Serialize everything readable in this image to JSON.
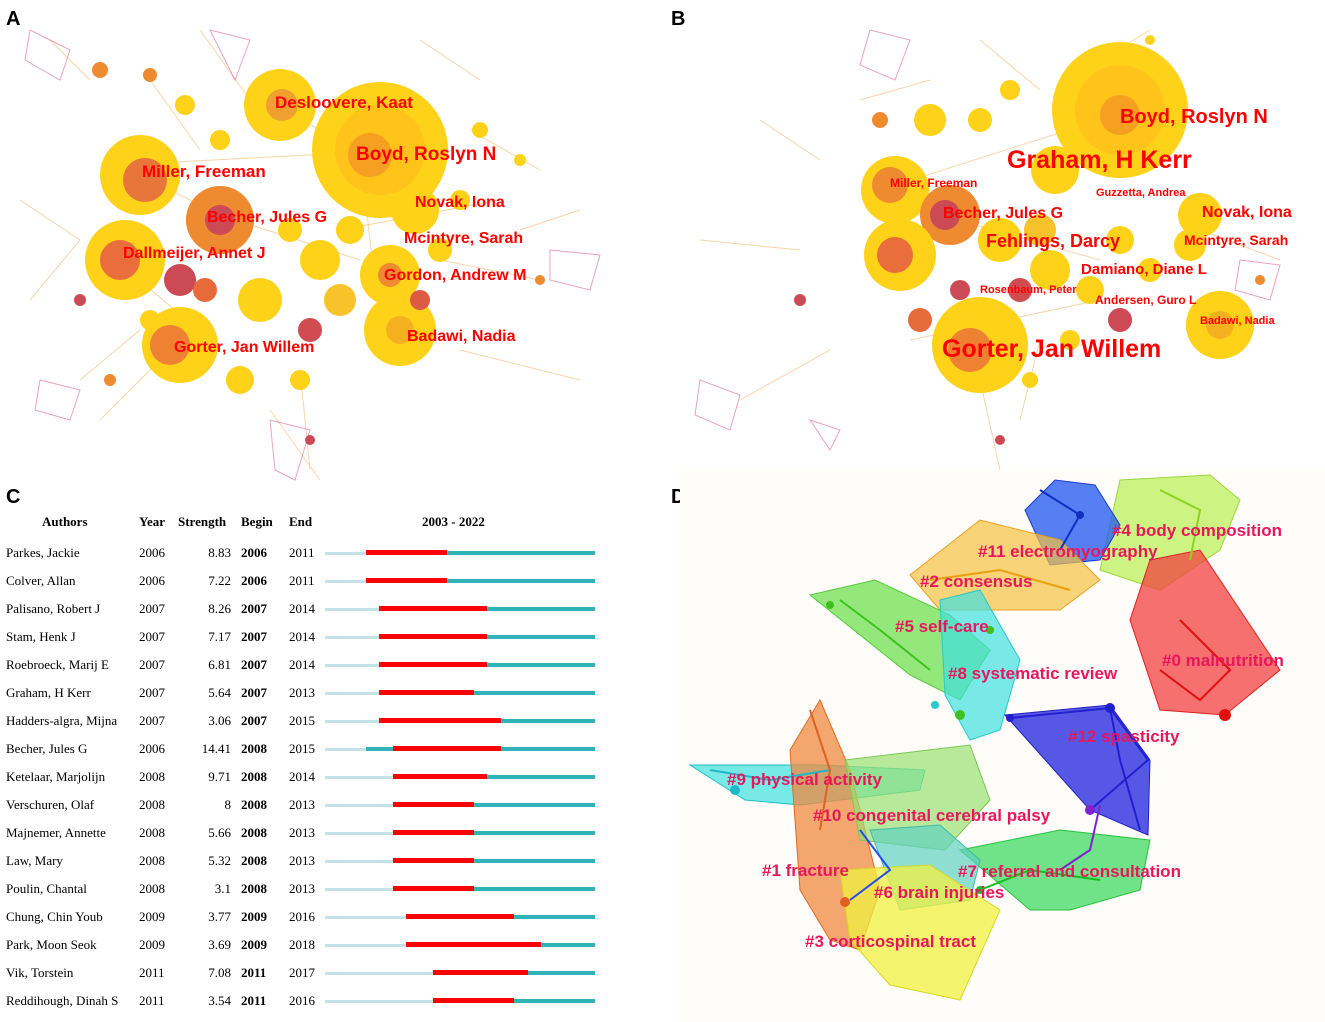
{
  "panels": {
    "a": "A",
    "b": "B",
    "c": "C",
    "d": "D"
  },
  "panel_a": {
    "labels": [
      "Desloovere, Kaat",
      "Boyd, Roslyn N",
      "Miller, Freeman",
      "Novak, Iona",
      "Becher, Jules G",
      "Mcintyre, Sarah",
      "Dallmeijer, Annet J",
      "Gordon, Andrew M",
      "Badawi, Nadia",
      "Gorter, Jan Willem"
    ]
  },
  "panel_b": {
    "labels": [
      "Boyd, Roslyn N",
      "Graham, H Kerr",
      "Miller, Freeman",
      "Guzzetta, Andrea",
      "Becher, Jules G",
      "Novak, Iona",
      "Fehlings, Darcy",
      "Mcintyre, Sarah",
      "Damiano, Diane L",
      "Rosenbaum, Peter",
      "Andersen, Guro L",
      "Badawi, Nadia",
      "Gorter, Jan Willem"
    ]
  },
  "panel_c": {
    "headers": {
      "authors": "Authors",
      "year": "Year",
      "strength": "Strength",
      "begin": "Begin",
      "end": "End",
      "range": "2003 - 2022"
    },
    "range_start": 2003,
    "range_end": 2022,
    "rows": [
      {
        "author": "Parkes, Jackie",
        "year": "2006",
        "strength": "8.83",
        "begin": "2006",
        "end": "2011"
      },
      {
        "author": "Colver, Allan",
        "year": "2006",
        "strength": "7.22",
        "begin": "2006",
        "end": "2011"
      },
      {
        "author": "Palisano, Robert J",
        "year": "2007",
        "strength": "8.26",
        "begin": "2007",
        "end": "2014"
      },
      {
        "author": "Stam, Henk J",
        "year": "2007",
        "strength": "7.17",
        "begin": "2007",
        "end": "2014"
      },
      {
        "author": "Roebroeck, Marij E",
        "year": "2007",
        "strength": "6.81",
        "begin": "2007",
        "end": "2014"
      },
      {
        "author": "Graham, H Kerr",
        "year": "2007",
        "strength": "5.64",
        "begin": "2007",
        "end": "2013"
      },
      {
        "author": "Hadders-algra, Mijna",
        "year": "2007",
        "strength": "3.06",
        "begin": "2007",
        "end": "2015"
      },
      {
        "author": "Becher, Jules G",
        "year": "2006",
        "strength": "14.41",
        "begin": "2008",
        "end": "2015"
      },
      {
        "author": "Ketelaar, Marjolijn",
        "year": "2008",
        "strength": "9.71",
        "begin": "2008",
        "end": "2014"
      },
      {
        "author": "Verschuren, Olaf",
        "year": "2008",
        "strength": "8",
        "begin": "2008",
        "end": "2013"
      },
      {
        "author": "Majnemer, Annette",
        "year": "2008",
        "strength": "5.66",
        "begin": "2008",
        "end": "2013"
      },
      {
        "author": "Law, Mary",
        "year": "2008",
        "strength": "5.32",
        "begin": "2008",
        "end": "2013"
      },
      {
        "author": "Poulin, Chantal",
        "year": "2008",
        "strength": "3.1",
        "begin": "2008",
        "end": "2013"
      },
      {
        "author": "Chung, Chin Youb",
        "year": "2009",
        "strength": "3.77",
        "begin": "2009",
        "end": "2016"
      },
      {
        "author": "Park, Moon Seok",
        "year": "2009",
        "strength": "3.69",
        "begin": "2009",
        "end": "2018"
      },
      {
        "author": "Vik, Torstein",
        "year": "2011",
        "strength": "7.08",
        "begin": "2011",
        "end": "2017"
      },
      {
        "author": "Reddihough, Dinah S",
        "year": "2011",
        "strength": "3.54",
        "begin": "2011",
        "end": "2016"
      }
    ]
  },
  "panel_d": {
    "clusters": [
      "#4 body composition",
      "#11 electromyography",
      "#2 consensus",
      "#5 self-care",
      "#0 malnutrition",
      "#8 systematic review",
      "#12 spasticity",
      "#9 physical activity",
      "#10 congenital cerebral palsy",
      "#1 fracture",
      "#7 referral and consultation",
      "#6 brain injuries",
      "#3 corticospinal tract"
    ]
  },
  "colors": {
    "label_red": "#ff0000",
    "cluster_label": "#e8175d",
    "burst": "#ff0000",
    "timeline": "#2fb3b6"
  }
}
